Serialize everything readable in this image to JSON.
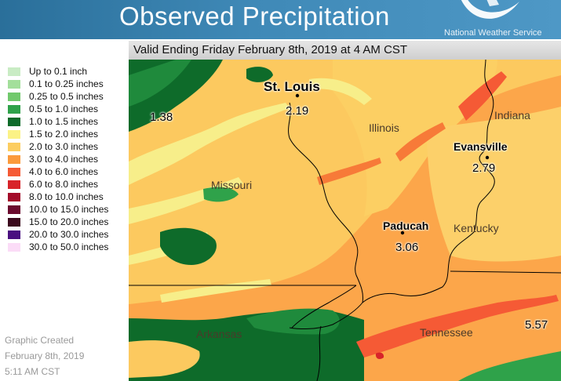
{
  "header": {
    "title": "Observed Precipitation",
    "agency": "National Weather Service",
    "valid_text": "Valid Ending Friday February 8th, 2019 at 4 AM CST"
  },
  "legend": {
    "items": [
      {
        "label": "Up to 0.1 inch",
        "color": "#c9ecc4"
      },
      {
        "label": "0.1 to 0.25 inches",
        "color": "#a3df9b"
      },
      {
        "label": "0.25 to 0.5 inches",
        "color": "#71c96c"
      },
      {
        "label": "0.5 to 1.0 inches",
        "color": "#2fa24a"
      },
      {
        "label": "1.0 to 1.5 inches",
        "color": "#0e6b2a"
      },
      {
        "label": "1.5 to 2.0 inches",
        "color": "#fbf286"
      },
      {
        "label": "2.0 to 3.0 inches",
        "color": "#fccd60"
      },
      {
        "label": "3.0 to 4.0 inches",
        "color": "#fb9a3c"
      },
      {
        "label": "4.0 to 6.0 inches",
        "color": "#f55a35"
      },
      {
        "label": "6.0 to 8.0 inches",
        "color": "#d8242a"
      },
      {
        "label": "8.0 to 10.0 inches",
        "color": "#a30c2a"
      },
      {
        "label": "10.0 to 15.0 inches",
        "color": "#6b0a2e"
      },
      {
        "label": "15.0 to 20.0 inches",
        "color": "#3c0a1e"
      },
      {
        "label": "20.0 to 30.0 inches",
        "color": "#4a1080"
      },
      {
        "label": "30.0 to 50.0 inches",
        "color": "#fbdcf7"
      }
    ]
  },
  "created": {
    "line1": "Graphic Created",
    "line2": "February 8th, 2019",
    "line3": "5:11 AM CST"
  },
  "map": {
    "states": {
      "missouri": "Missouri",
      "illinois": "Illinois",
      "indiana": "Indiana",
      "kentucky": "Kentucky",
      "arkansas": "Arkansas",
      "tennessee": "Tennessee"
    },
    "cities": {
      "st_louis": "St. Louis",
      "evansville": "Evansville",
      "paducah": "Paducah"
    },
    "amounts": {
      "west_mo": "1.38",
      "st_louis": "2.19",
      "evansville": "2.79",
      "paducah": "3.06",
      "east_tn": "5.57"
    }
  }
}
